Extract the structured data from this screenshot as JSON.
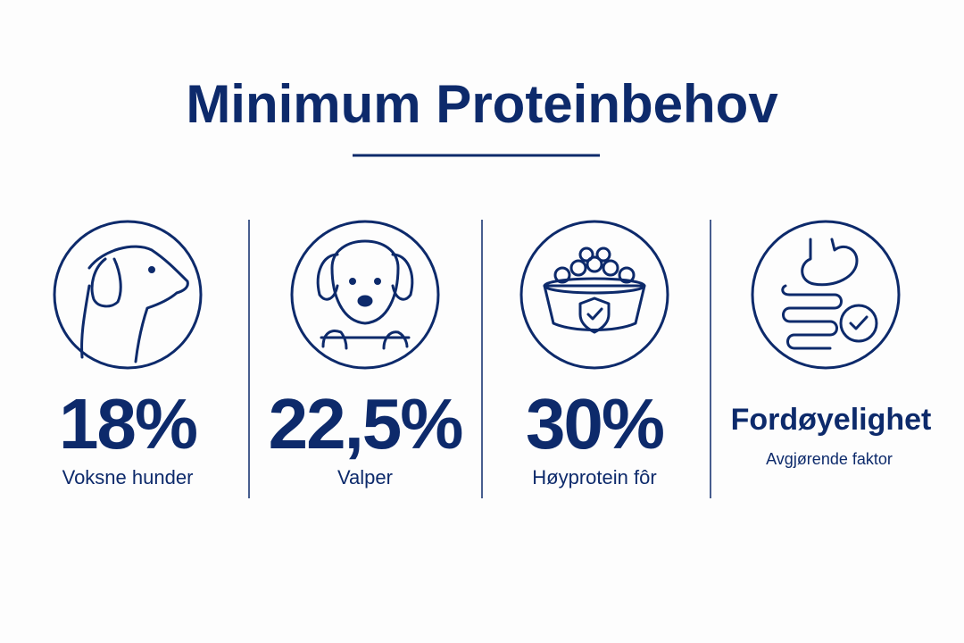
{
  "header": {
    "title": "Minimum Proteinbehov"
  },
  "items": [
    {
      "value": "18%",
      "label": "Voksne hunder"
    },
    {
      "value": "22,5%",
      "label": "Valper"
    },
    {
      "value": "30%",
      "label": "Høyprotein fôr"
    },
    {
      "value": "Fordøyelighet",
      "label": "Avgjørende faktor"
    }
  ]
}
